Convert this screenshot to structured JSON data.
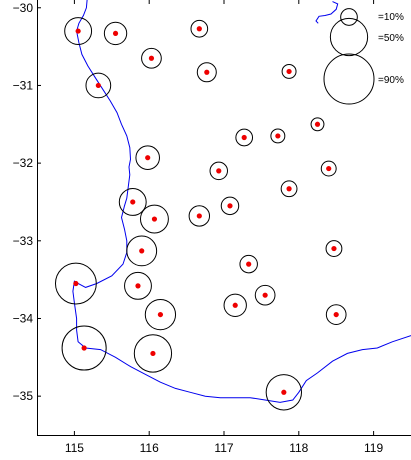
{
  "chart_data": {
    "type": "scatter",
    "x_range": [
      114.5,
      119.5
    ],
    "y_range": [
      -35.5,
      -29.9
    ],
    "x_ticks": [
      115,
      116,
      117,
      118,
      119
    ],
    "y_ticks": [
      -30,
      -31,
      -32,
      -33,
      -34,
      -35
    ],
    "x_tick_labels": [
      "115",
      "116",
      "117",
      "118",
      "119"
    ],
    "y_tick_labels": [
      "−30",
      "−31",
      "−32",
      "−33",
      "−34",
      "−35"
    ],
    "grid": false,
    "legend_position": "top-right",
    "size_legend": [
      {
        "label": "=10%",
        "value": 10
      },
      {
        "label": "=50%",
        "value": 50
      },
      {
        "label": "=90%",
        "value": 90
      }
    ],
    "colors": {
      "point": "#ee0000",
      "coastline": "#0000ee",
      "circle": "#000000"
    },
    "stations": [
      {
        "lon": 115.05,
        "lat": -30.3,
        "value": 26
      },
      {
        "lon": 115.55,
        "lat": -30.33,
        "value": 18
      },
      {
        "lon": 116.03,
        "lat": -30.65,
        "value": 14
      },
      {
        "lon": 116.67,
        "lat": -30.27,
        "value": 10
      },
      {
        "lon": 116.77,
        "lat": -30.83,
        "value": 13
      },
      {
        "lon": 117.87,
        "lat": -30.82,
        "value": 7
      },
      {
        "lon": 115.32,
        "lat": -31.0,
        "value": 22
      },
      {
        "lon": 117.27,
        "lat": -31.67,
        "value": 10
      },
      {
        "lon": 117.72,
        "lat": -31.65,
        "value": 7
      },
      {
        "lon": 118.25,
        "lat": -31.5,
        "value": 6
      },
      {
        "lon": 115.98,
        "lat": -31.93,
        "value": 20
      },
      {
        "lon": 116.93,
        "lat": -32.1,
        "value": 11
      },
      {
        "lon": 118.4,
        "lat": -32.07,
        "value": 8
      },
      {
        "lon": 117.87,
        "lat": -32.33,
        "value": 9
      },
      {
        "lon": 115.78,
        "lat": -32.5,
        "value": 26
      },
      {
        "lon": 116.07,
        "lat": -32.72,
        "value": 28
      },
      {
        "lon": 116.67,
        "lat": -32.68,
        "value": 15
      },
      {
        "lon": 117.08,
        "lat": -32.55,
        "value": 11
      },
      {
        "lon": 118.47,
        "lat": -33.1,
        "value": 9
      },
      {
        "lon": 115.9,
        "lat": -33.13,
        "value": 32
      },
      {
        "lon": 117.33,
        "lat": -33.3,
        "value": 11
      },
      {
        "lon": 115.02,
        "lat": -33.55,
        "value": 60
      },
      {
        "lon": 115.85,
        "lat": -33.58,
        "value": 26
      },
      {
        "lon": 117.55,
        "lat": -33.7,
        "value": 14
      },
      {
        "lon": 117.15,
        "lat": -33.83,
        "value": 18
      },
      {
        "lon": 116.15,
        "lat": -33.95,
        "value": 33
      },
      {
        "lon": 118.5,
        "lat": -33.95,
        "value": 14
      },
      {
        "lon": 115.13,
        "lat": -34.38,
        "value": 70
      },
      {
        "lon": 116.05,
        "lat": -34.45,
        "value": 50
      },
      {
        "lon": 117.8,
        "lat": -34.95,
        "value": 45
      }
    ],
    "coastline": [
      [
        115.17,
        -29.9
      ],
      [
        115.16,
        -30.0
      ],
      [
        115.12,
        -30.1
      ],
      [
        115.06,
        -30.2
      ],
      [
        115.03,
        -30.3
      ],
      [
        115.06,
        -30.45
      ],
      [
        115.1,
        -30.6
      ],
      [
        115.18,
        -30.75
      ],
      [
        115.28,
        -30.9
      ],
      [
        115.38,
        -31.05
      ],
      [
        115.48,
        -31.2
      ],
      [
        115.57,
        -31.35
      ],
      [
        115.63,
        -31.5
      ],
      [
        115.7,
        -31.65
      ],
      [
        115.74,
        -31.8
      ],
      [
        115.75,
        -31.95
      ],
      [
        115.73,
        -32.05
      ],
      [
        115.74,
        -32.15
      ],
      [
        115.72,
        -32.3
      ],
      [
        115.7,
        -32.45
      ],
      [
        115.67,
        -32.55
      ],
      [
        115.63,
        -32.7
      ],
      [
        115.67,
        -32.85
      ],
      [
        115.7,
        -33.0
      ],
      [
        115.7,
        -33.15
      ],
      [
        115.65,
        -33.3
      ],
      [
        115.5,
        -33.45
      ],
      [
        115.3,
        -33.55
      ],
      [
        115.15,
        -33.6
      ],
      [
        115.05,
        -33.55
      ],
      [
        115.0,
        -33.52
      ],
      [
        114.98,
        -33.65
      ],
      [
        115.0,
        -33.8
      ],
      [
        115.03,
        -34.0
      ],
      [
        115.03,
        -34.15
      ],
      [
        115.05,
        -34.3
      ],
      [
        115.15,
        -34.38
      ],
      [
        115.35,
        -34.4
      ],
      [
        115.55,
        -34.5
      ],
      [
        115.75,
        -34.62
      ],
      [
        115.95,
        -34.72
      ],
      [
        116.15,
        -34.82
      ],
      [
        116.35,
        -34.9
      ],
      [
        116.55,
        -34.95
      ],
      [
        116.75,
        -35.0
      ],
      [
        116.95,
        -35.02
      ],
      [
        117.15,
        -35.02
      ],
      [
        117.35,
        -35.02
      ],
      [
        117.55,
        -35.05
      ],
      [
        117.75,
        -35.08
      ],
      [
        117.92,
        -35.05
      ],
      [
        118.0,
        -34.95
      ],
      [
        118.1,
        -34.8
      ],
      [
        118.25,
        -34.7
      ],
      [
        118.45,
        -34.55
      ],
      [
        118.65,
        -34.45
      ],
      [
        118.85,
        -34.4
      ],
      [
        119.05,
        -34.38
      ],
      [
        119.25,
        -34.3
      ],
      [
        119.5,
        -34.22
      ]
    ],
    "inlet": [
      [
        118.45,
        -29.92
      ],
      [
        118.52,
        -29.95
      ],
      [
        118.5,
        -30.02
      ],
      [
        118.43,
        -30.08
      ],
      [
        118.35,
        -30.1
      ],
      [
        118.27,
        -30.11
      ],
      [
        118.23,
        -30.17
      ],
      [
        118.26,
        -30.2
      ]
    ]
  }
}
